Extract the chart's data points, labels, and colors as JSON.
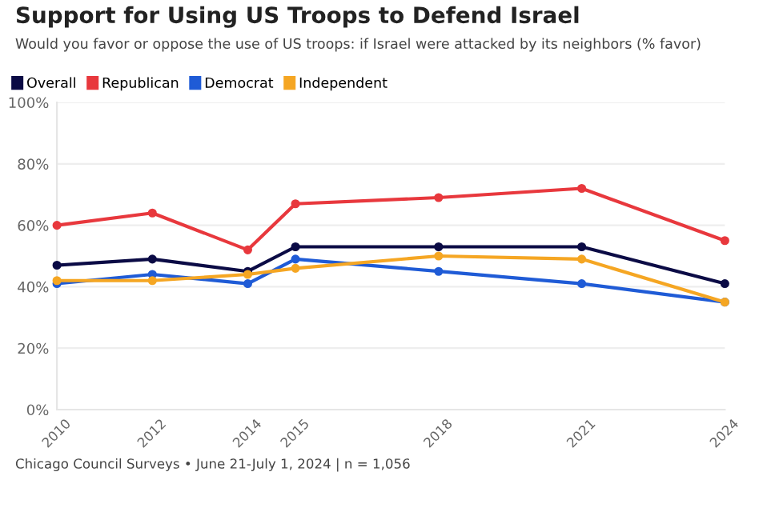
{
  "chart_data": {
    "type": "line",
    "title": "Support for Using US Troops to Defend Israel",
    "subtitle": "Would you favor or oppose the use of US troops: if Israel were attacked by its neighbors (% favor)",
    "x": [
      2010,
      2012,
      2014,
      2015,
      2018,
      2021,
      2024
    ],
    "series": [
      {
        "name": "Overall",
        "color": "#0b0b45",
        "values": [
          47,
          49,
          45,
          53,
          53,
          53,
          41
        ]
      },
      {
        "name": "Republican",
        "color": "#e8383d",
        "values": [
          60,
          64,
          52,
          67,
          69,
          72,
          55
        ]
      },
      {
        "name": "Democrat",
        "color": "#1f5bd6",
        "values": [
          41,
          44,
          41,
          49,
          45,
          41,
          35
        ]
      },
      {
        "name": "Independent",
        "color": "#f5a623",
        "values": [
          42,
          42,
          44,
          46,
          50,
          49,
          35
        ]
      }
    ],
    "xlim": [
      2010,
      2024
    ],
    "xticks": [
      2010,
      2012,
      2014,
      2015,
      2018,
      2021,
      2024
    ],
    "ylim": [
      0,
      100
    ],
    "yticks": [
      {
        "value": 0,
        "label": "0%"
      },
      {
        "value": 20,
        "label": "20%"
      },
      {
        "value": 40,
        "label": "40%"
      },
      {
        "value": 60,
        "label": "60%"
      },
      {
        "value": 80,
        "label": "80%"
      },
      {
        "value": 100,
        "label": "100%"
      }
    ],
    "grid": "y",
    "legend": "top left",
    "marker": "circle",
    "line_style": "solid",
    "annotations": [
      "Chicago Council Surveys • June 21-July 1, 2024 | n = 1,056"
    ]
  }
}
